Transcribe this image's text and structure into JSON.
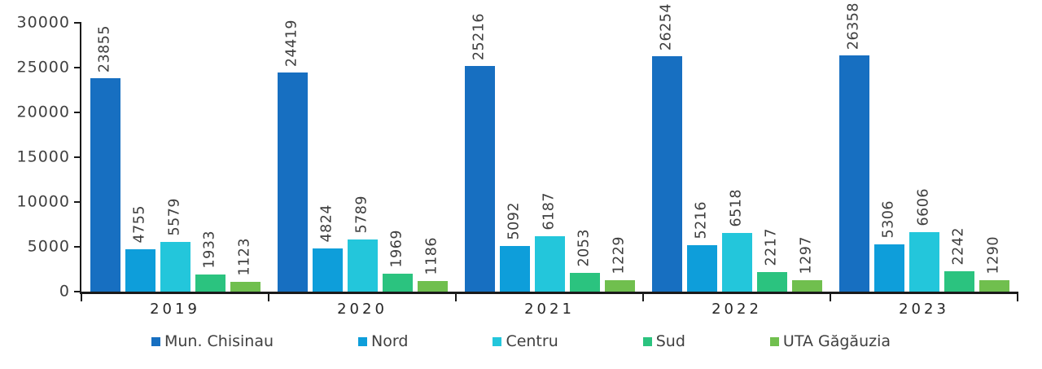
{
  "chart_data": {
    "type": "bar",
    "title": "",
    "xlabel": "",
    "ylabel": "",
    "categories": [
      "2019",
      "2020",
      "2021",
      "2022",
      "2023"
    ],
    "series": [
      {
        "name": "Mun. Chisinau",
        "color": "#176FC1",
        "values": [
          23855,
          24419,
          25216,
          26254,
          26358
        ]
      },
      {
        "name": "Nord",
        "color": "#0E9EDA",
        "values": [
          4755,
          4824,
          5092,
          5216,
          5306
        ]
      },
      {
        "name": "Centru",
        "color": "#23C6DB",
        "values": [
          5579,
          5789,
          6187,
          6518,
          6606
        ]
      },
      {
        "name": "Sud",
        "color": "#2BC37F",
        "values": [
          1933,
          1969,
          2053,
          2217,
          2242
        ]
      },
      {
        "name": "UTA Găgăuzia",
        "color": "#70BF4E",
        "values": [
          1123,
          1186,
          1229,
          1297,
          1290
        ]
      }
    ],
    "y_axis": {
      "ticks": [
        0,
        5000,
        10000,
        15000,
        20000,
        25000,
        30000
      ],
      "min": 0,
      "max": 30000
    },
    "grid": false,
    "legend_position": "bottom",
    "bar_value_labels_rotated": true
  }
}
